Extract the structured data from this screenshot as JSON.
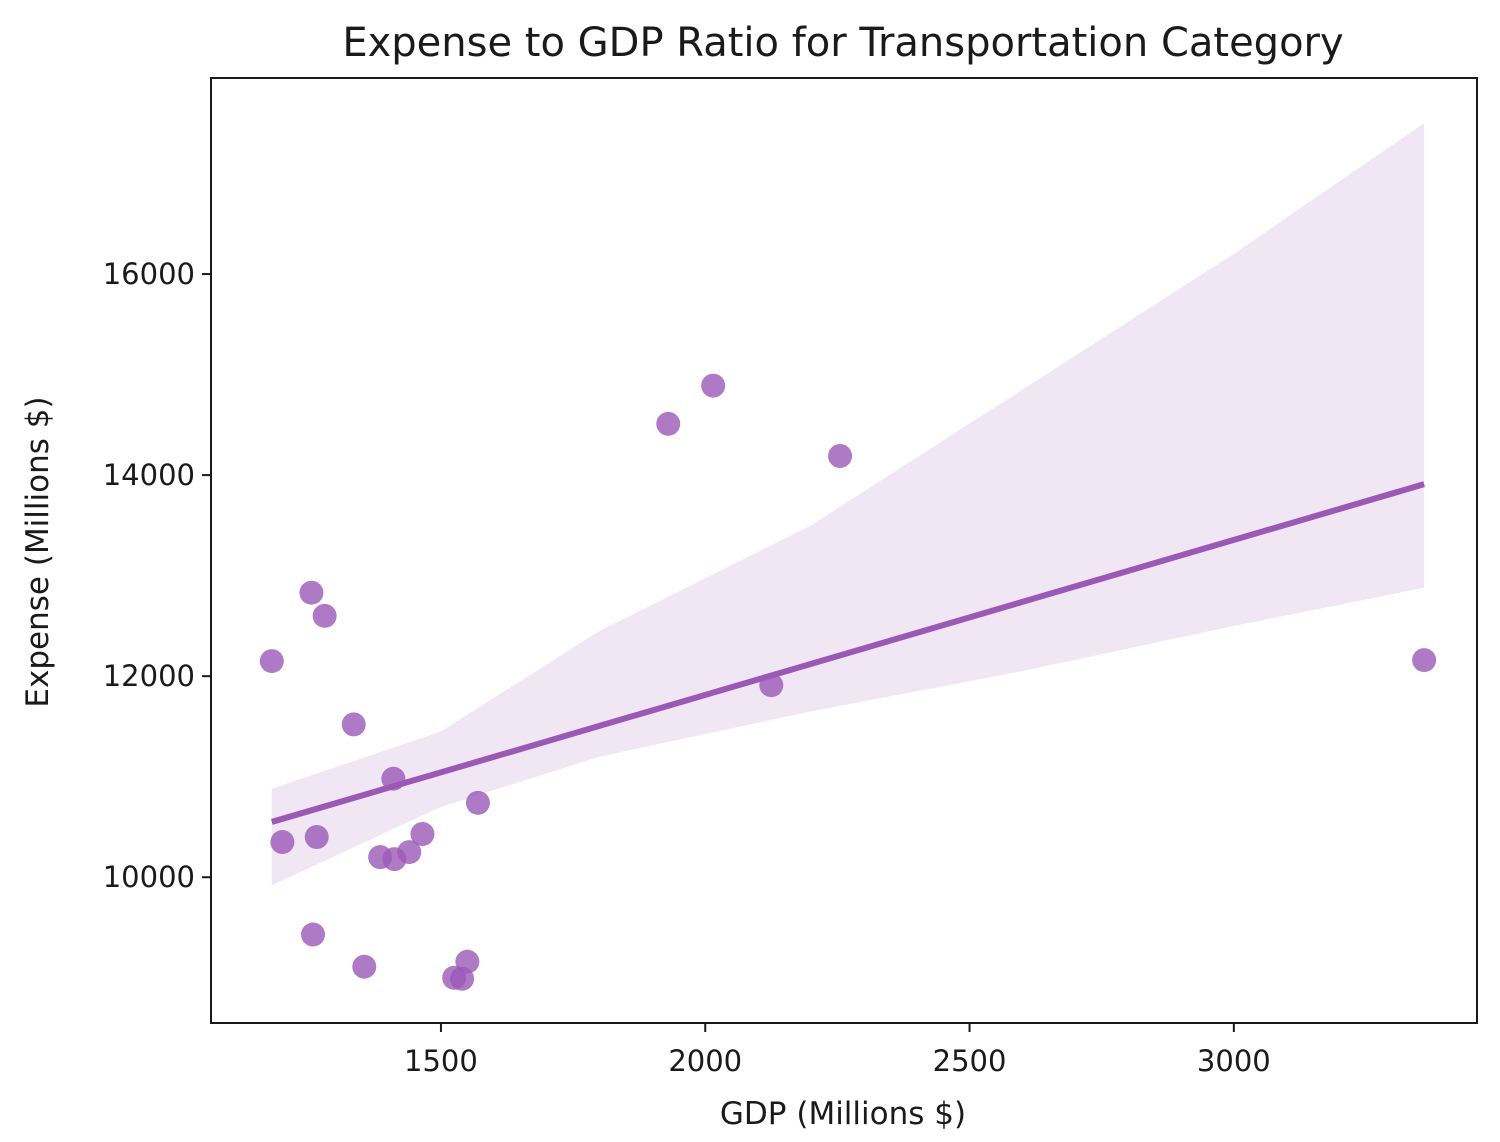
{
  "chart_data": {
    "type": "scatter",
    "title": "Expense to GDP Ratio for Transportation Category",
    "xlabel": "GDP (Millions $)",
    "ylabel": "Expense (Millions $)",
    "xlim": [
      1065,
      3460
    ],
    "ylim": [
      8550,
      17950
    ],
    "xticks": [
      1500,
      2000,
      2500,
      3000
    ],
    "yticks": [
      10000,
      12000,
      14000,
      16000
    ],
    "grid": false,
    "legend": "none",
    "colors": {
      "points": "#9b59b6",
      "regression_line": "#9b59b6",
      "confidence_band": "#9b59b6"
    },
    "points": [
      {
        "x": 1180,
        "y": 12150
      },
      {
        "x": 1200,
        "y": 10350
      },
      {
        "x": 1255,
        "y": 12830
      },
      {
        "x": 1258,
        "y": 9430
      },
      {
        "x": 1265,
        "y": 10400
      },
      {
        "x": 1280,
        "y": 12600
      },
      {
        "x": 1335,
        "y": 11520
      },
      {
        "x": 1355,
        "y": 9110
      },
      {
        "x": 1385,
        "y": 10200
      },
      {
        "x": 1410,
        "y": 10980
      },
      {
        "x": 1412,
        "y": 10180
      },
      {
        "x": 1440,
        "y": 10250
      },
      {
        "x": 1465,
        "y": 10430
      },
      {
        "x": 1525,
        "y": 9000
      },
      {
        "x": 1540,
        "y": 8990
      },
      {
        "x": 1550,
        "y": 9160
      },
      {
        "x": 1570,
        "y": 10740
      },
      {
        "x": 1930,
        "y": 14510
      },
      {
        "x": 2015,
        "y": 14890
      },
      {
        "x": 2125,
        "y": 11910
      },
      {
        "x": 2255,
        "y": 14190
      },
      {
        "x": 3360,
        "y": 12160
      }
    ],
    "regression_line": [
      {
        "x": 1180,
        "y": 10550
      },
      {
        "x": 3360,
        "y": 13910
      }
    ],
    "confidence_band": {
      "upper": [
        {
          "x": 1180,
          "y": 10880
        },
        {
          "x": 1500,
          "y": 11450
        },
        {
          "x": 1800,
          "y": 12450
        },
        {
          "x": 2200,
          "y": 13500
        },
        {
          "x": 2600,
          "y": 14850
        },
        {
          "x": 3000,
          "y": 16200
        },
        {
          "x": 3360,
          "y": 17500
        }
      ],
      "lower": [
        {
          "x": 3360,
          "y": 12880
        },
        {
          "x": 3000,
          "y": 12500
        },
        {
          "x": 2600,
          "y": 12050
        },
        {
          "x": 2200,
          "y": 11650
        },
        {
          "x": 1800,
          "y": 11200
        },
        {
          "x": 1500,
          "y": 10700
        },
        {
          "x": 1180,
          "y": 9920
        }
      ]
    }
  }
}
